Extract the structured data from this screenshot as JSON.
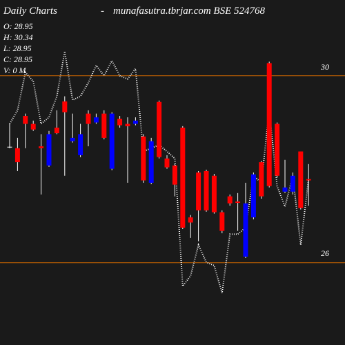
{
  "chart_data": {
    "type": "candlestick",
    "title": "Daily Charts",
    "separator": "-",
    "subtitle": "munafasutra.tbrjar.com BSE 524768",
    "info": [
      "O: 28.95",
      "H: 30.34",
      "L: 28.95",
      "C: 28.95",
      "V: 0  M"
    ],
    "open": [
      28.48,
      28.45,
      29.14,
      28.97,
      28.49,
      28.08,
      28.89,
      29.45,
      28.6,
      28.3,
      29.19,
      29.0,
      29.19,
      28.01,
      29.08,
      28.97,
      28.97,
      28.7,
      27.71,
      29.44,
      28.23,
      28.08,
      28.89,
      26.97,
      27.93,
      27.96,
      27.86,
      27.08,
      27.42,
      27.31,
      26.13,
      26.97,
      28.15,
      30.27,
      28.97,
      27.52,
      27.52,
      28.38,
      27.79
    ],
    "high": [
      28.97,
      28.67,
      29.19,
      29.04,
      28.75,
      28.82,
      29.26,
      29.56,
      29.19,
      28.97,
      29.26,
      29.19,
      29.26,
      29.22,
      29.14,
      29.11,
      29.11,
      28.75,
      28.67,
      29.47,
      28.3,
      28.11,
      28.92,
      27.02,
      27.96,
      27.99,
      27.9,
      27.12,
      27.46,
      27.49,
      27.71,
      27.93,
      28.18,
      30.3,
      29.0,
      28.2,
      27.93,
      28.38,
      28.11
    ],
    "low": [
      28.45,
      27.96,
      28.45,
      28.82,
      27.46,
      28.05,
      28.75,
      27.86,
      28.57,
      28.26,
      28.49,
      28.97,
      28.64,
      27.98,
      28.89,
      27.71,
      28.94,
      27.71,
      27.68,
      28.23,
      28.01,
      27.42,
      26.72,
      26.53,
      26.46,
      27.09,
      27.05,
      26.63,
      27.22,
      26.68,
      26.1,
      26.93,
      27.37,
      27.61,
      27.82,
      27.49,
      27.46,
      27.14,
      27.22
    ],
    "close": [
      28.48,
      28.15,
      28.97,
      28.85,
      28.45,
      28.75,
      28.77,
      29.22,
      28.67,
      28.75,
      28.97,
      29.11,
      28.67,
      29.19,
      28.94,
      28.92,
      29.04,
      27.76,
      28.6,
      28.26,
      28.04,
      27.67,
      26.75,
      26.86,
      27.12,
      27.12,
      27.08,
      26.68,
      27.27,
      27.28,
      27.27,
      27.89,
      27.42,
      27.64,
      27.86,
      27.61,
      27.86,
      27.17,
      27.76
    ],
    "up_color": "#0000ff",
    "down_color": "#ff0000",
    "doji_color": "#ffffff",
    "wick_color": "#ffffff",
    "line": {
      "color": "#ffffff",
      "values": [
        28.97,
        29.26,
        30.07,
        29.88,
        28.97,
        29.11,
        29.56,
        30.52,
        29.48,
        29.56,
        29.85,
        30.22,
        30.0,
        30.32,
        30.0,
        29.93,
        30.15,
        28.38,
        28.45,
        28.52,
        28.38,
        28.23,
        25.5,
        25.72,
        26.38,
        26.01,
        25.94,
        25.35,
        26.61,
        26.61,
        26.75,
        27.86,
        27.71,
        29.26,
        27.64,
        27.2,
        27.86,
        26.38,
        27.79
      ]
    },
    "ylim": [
      24.24,
      31.62
    ],
    "yticks": [
      30,
      26
    ],
    "grid": true,
    "grid_color": "#cc6600"
  }
}
